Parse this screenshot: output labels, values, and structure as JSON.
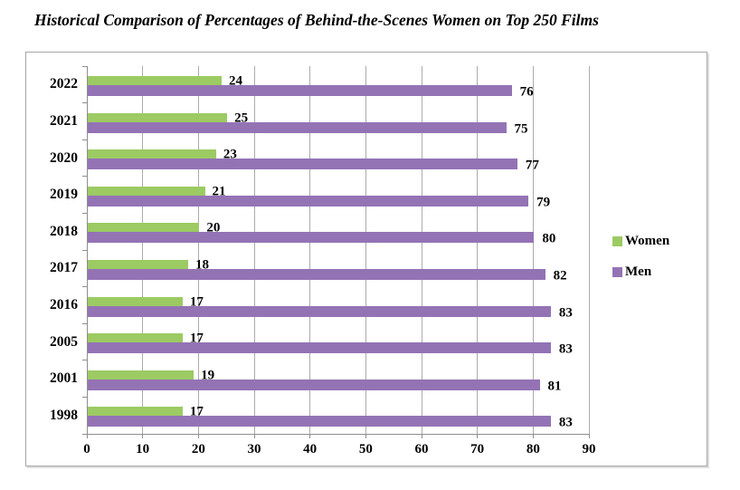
{
  "title": "Historical Comparison of Percentages of Behind-the-Scenes Women on Top 250 Films",
  "chart_data": {
    "type": "bar",
    "orientation": "horizontal",
    "title": "Historical Comparison of Percentages of Behind-the-Scenes Women on Top 250 Films",
    "categories": [
      "2022",
      "2021",
      "2020",
      "2019",
      "2018",
      "2017",
      "2016",
      "2005",
      "2001",
      "1998"
    ],
    "series": [
      {
        "name": "Women",
        "color": "#9cca63",
        "values": [
          24,
          25,
          23,
          21,
          20,
          18,
          17,
          17,
          19,
          17
        ]
      },
      {
        "name": "Men",
        "color": "#9473b5",
        "values": [
          76,
          75,
          77,
          79,
          80,
          82,
          83,
          83,
          81,
          83
        ]
      }
    ],
    "x_ticks": [
      "0",
      "10",
      "20",
      "30",
      "40",
      "50",
      "60",
      "70",
      "80",
      "90"
    ],
    "xlim": [
      0,
      90
    ],
    "grid": true,
    "data_labels": true,
    "legend_position": "right"
  },
  "colors": {
    "gridline": "#ababab",
    "axis": "#8e8e8e",
    "frame_border": "#a6a6a6",
    "text": "#000000"
  }
}
